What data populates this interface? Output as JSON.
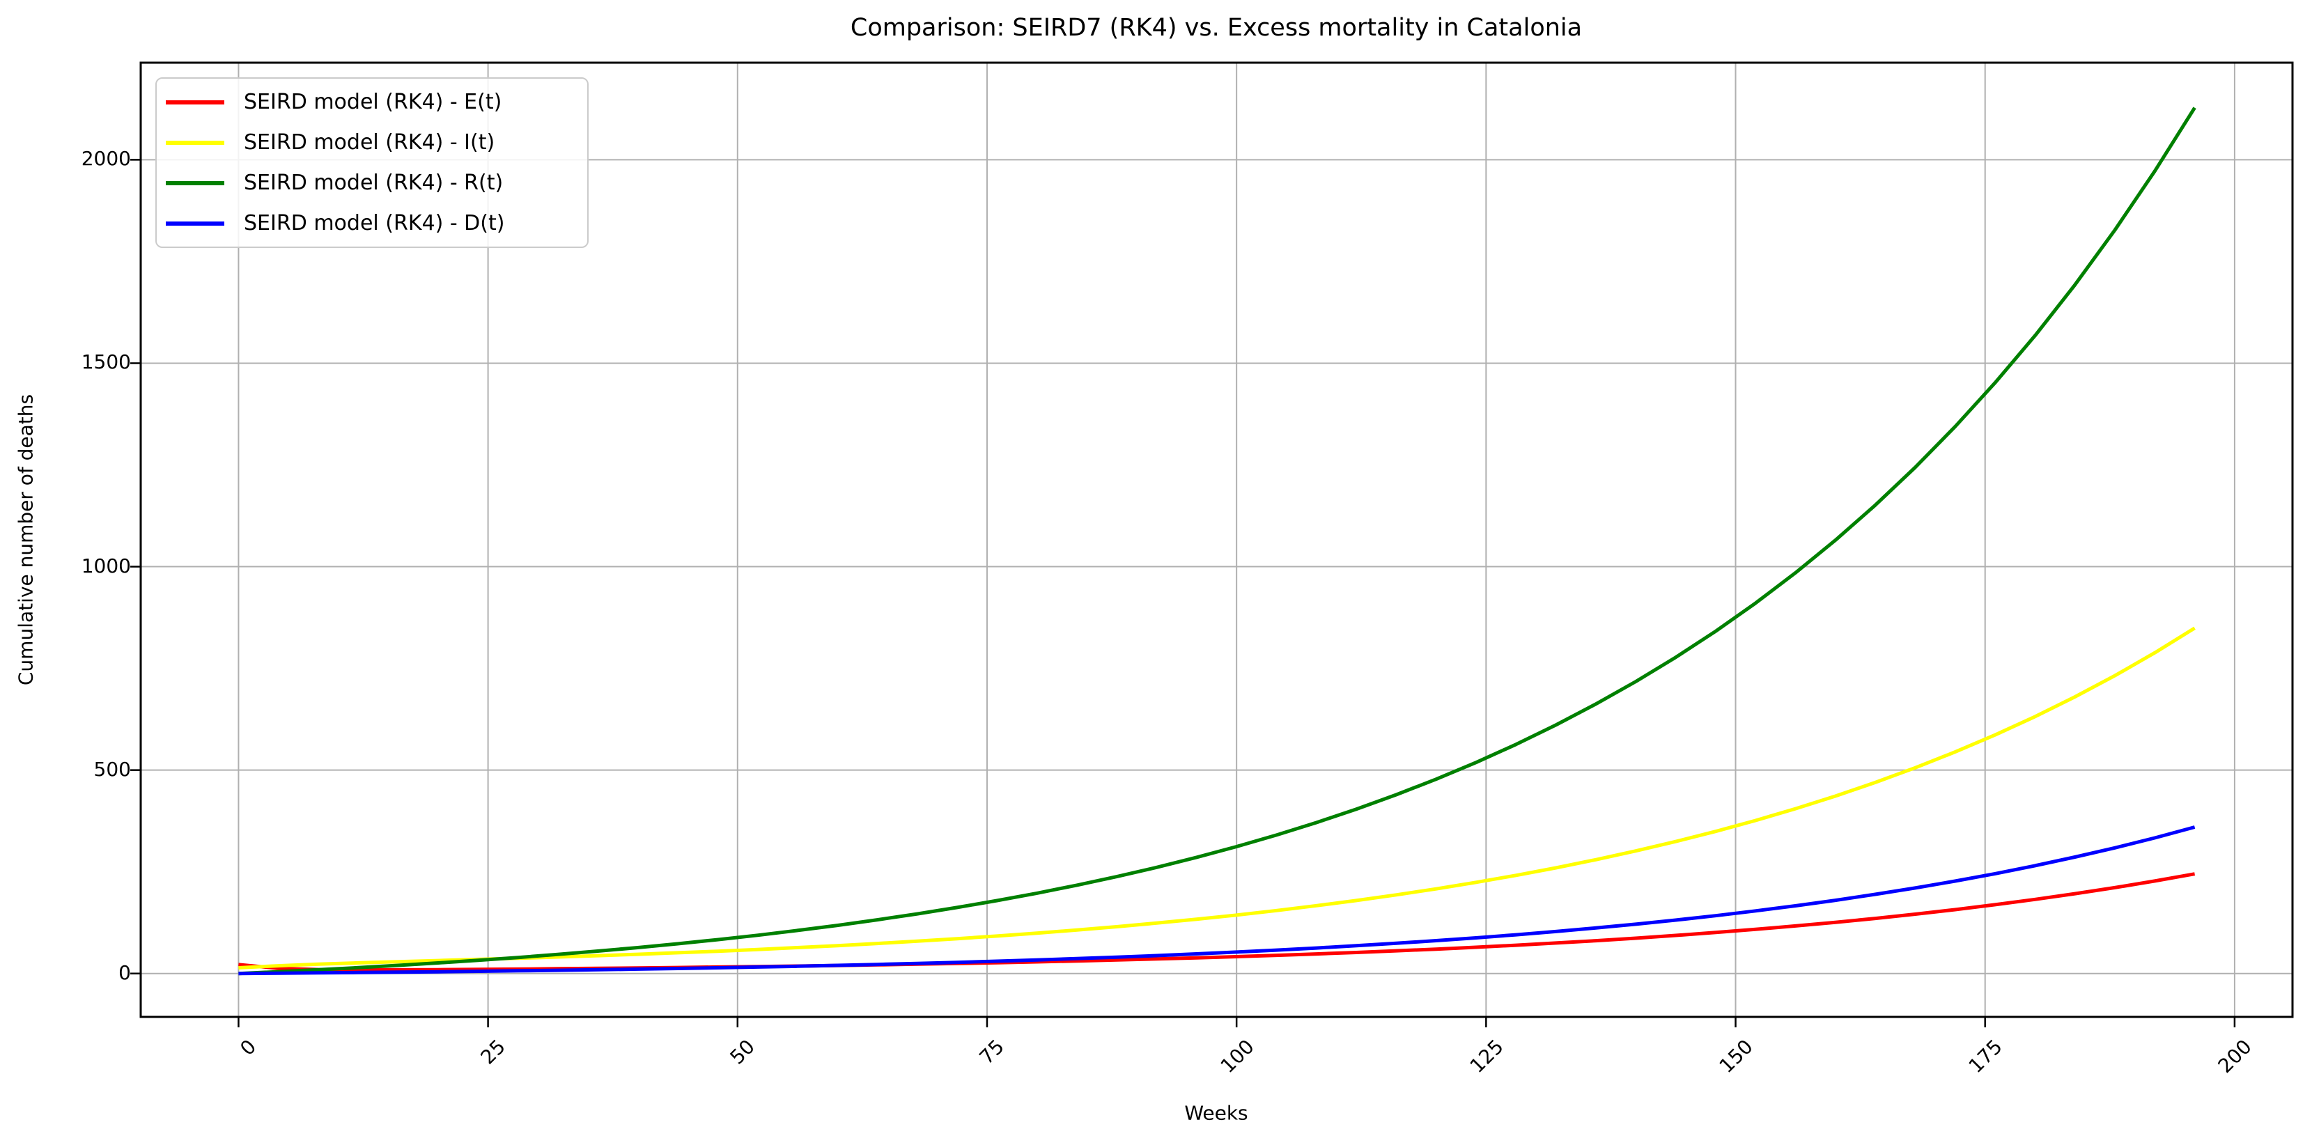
{
  "figure": {
    "background": "#ffffff"
  },
  "chart_data": {
    "type": "line",
    "title": "Comparison: SEIRD7 (RK4) vs. Excess mortality in Catalonia",
    "xlabel": "Weeks",
    "ylabel": "Cumulative number of deaths",
    "x_ticks": [
      0,
      25,
      50,
      75,
      100,
      125,
      150,
      175,
      200
    ],
    "y_ticks": [
      0,
      500,
      1000,
      1500,
      2000
    ],
    "xlim": [
      -9.8,
      205.8
    ],
    "ylim": [
      -106.6,
      2238.6
    ],
    "grid": true,
    "grid_color": "#b0b0b0",
    "spine_color": "#000000",
    "legend_position": "upper left",
    "x": [
      0,
      4,
      8,
      12,
      16,
      20,
      24,
      28,
      32,
      36,
      40,
      44,
      48,
      52,
      56,
      60,
      64,
      68,
      72,
      76,
      80,
      84,
      88,
      92,
      96,
      100,
      104,
      108,
      112,
      116,
      120,
      124,
      128,
      132,
      136,
      140,
      144,
      148,
      152,
      156,
      160,
      164,
      168,
      172,
      176,
      180,
      184,
      188,
      192,
      196
    ],
    "series": [
      {
        "name": "SEIRD model (RK4) - E(t)",
        "color": "#ff0000",
        "values": [
          22.0,
          12.7,
          9.7,
          8.9,
          9.1,
          9.5,
          10.2,
          10.9,
          11.8,
          12.7,
          13.7,
          14.7,
          15.9,
          17.1,
          18.4,
          19.8,
          21.3,
          22.9,
          24.7,
          26.6,
          28.6,
          30.8,
          33.2,
          35.8,
          38.5,
          41.5,
          44.7,
          48.1,
          51.8,
          55.8,
          60.0,
          64.6,
          69.6,
          75.0,
          80.7,
          86.9,
          93.6,
          100.8,
          108.5,
          116.9,
          125.8,
          135.5,
          145.9,
          157.1,
          169.2,
          182.2,
          196.2,
          211.2,
          227.4,
          244.9
        ]
      },
      {
        "name": "SEIRD model (RK4) - I(t)",
        "color": "#ffff00",
        "values": [
          14.1,
          19.1,
          23.0,
          26.2,
          29.1,
          31.9,
          34.8,
          37.6,
          40.7,
          43.9,
          47.3,
          51.0,
          54.9,
          59.1,
          63.7,
          68.6,
          73.9,
          79.5,
          85.6,
          92.2,
          99.3,
          106.9,
          115.1,
          124.0,
          133.5,
          143.7,
          154.8,
          166.7,
          179.5,
          193.3,
          208.1,
          224.1,
          241.3,
          259.8,
          279.8,
          301.3,
          324.4,
          349.3,
          376.1,
          405.0,
          436.1,
          469.6,
          505.7,
          544.6,
          586.4,
          631.4,
          679.9,
          732.1,
          788.4,
          848.9
        ]
      },
      {
        "name": "SEIRD model (RK4) - R(t)",
        "color": "#008000",
        "values": [
          0,
          4.5,
          9.3,
          14.5,
          20.0,
          26.1,
          32.5,
          39.5,
          47.0,
          55.1,
          63.8,
          73.2,
          83.2,
          94.1,
          105.8,
          118.4,
          132.0,
          146.6,
          162.3,
          179.2,
          197.5,
          217.1,
          238.2,
          261.0,
          285.6,
          311.9,
          340.4,
          371.0,
          404.0,
          439.5,
          477.7,
          518.8,
          563.1,
          610.9,
          662.3,
          717.6,
          777.2,
          841.3,
          910.4,
          984.8,
          1064.9,
          1151.2,
          1244.1,
          1344.1,
          1451.8,
          1567.8,
          1692.7,
          1827.2,
          1972.0,
          2127.9
        ]
      },
      {
        "name": "SEIRD model (RK4) - D(t)",
        "color": "#0000ff",
        "values": [
          0,
          0.8,
          1.6,
          2.4,
          3.4,
          4.4,
          5.5,
          6.7,
          7.9,
          9.3,
          10.8,
          12.4,
          14.1,
          15.9,
          17.9,
          20.0,
          22.3,
          24.8,
          27.4,
          30.3,
          33.4,
          36.7,
          40.3,
          44.1,
          48.3,
          52.7,
          57.5,
          62.7,
          68.3,
          74.3,
          80.8,
          87.7,
          95.2,
          103.3,
          112.0,
          121.3,
          131.4,
          142.2,
          153.9,
          166.5,
          180.0,
          194.6,
          210.3,
          227.2,
          245.4,
          265.1,
          286.2,
          308.9,
          333.4,
          359.8
        ]
      }
    ]
  }
}
